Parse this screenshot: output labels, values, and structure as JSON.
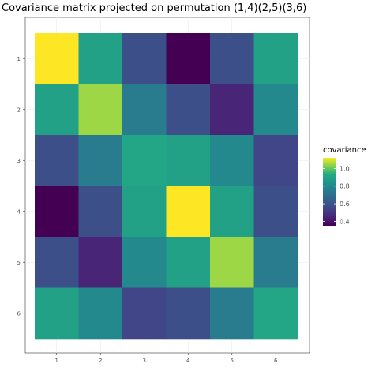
{
  "chart_data": {
    "type": "heatmap",
    "title": "Covariance matrix projected on permutation (1,4)(2,5)(3,6)",
    "xlabel": "",
    "ylabel": "",
    "x_categories": [
      "1",
      "2",
      "3",
      "4",
      "5",
      "6"
    ],
    "y_categories": [
      "1",
      "2",
      "3",
      "4",
      "5",
      "6"
    ],
    "values": [
      [
        1.12,
        0.9,
        0.58,
        0.35,
        0.58,
        0.9
      ],
      [
        0.9,
        1.05,
        0.75,
        0.58,
        0.45,
        0.8
      ],
      [
        0.58,
        0.75,
        0.92,
        0.9,
        0.8,
        0.55
      ],
      [
        0.35,
        0.58,
        0.9,
        1.12,
        0.9,
        0.58
      ],
      [
        0.58,
        0.45,
        0.8,
        0.9,
        1.05,
        0.75
      ],
      [
        0.9,
        0.8,
        0.55,
        0.58,
        0.75,
        0.92
      ]
    ],
    "color_scale": "viridis",
    "value_range": [
      0.35,
      1.12
    ],
    "grid": true,
    "legend": {
      "title": "covariance",
      "placement": "right",
      "breaks": [
        1.0,
        0.8,
        0.6,
        0.4
      ],
      "break_labels": [
        "1.0",
        "0.8",
        "0.6",
        "0.4"
      ]
    }
  }
}
